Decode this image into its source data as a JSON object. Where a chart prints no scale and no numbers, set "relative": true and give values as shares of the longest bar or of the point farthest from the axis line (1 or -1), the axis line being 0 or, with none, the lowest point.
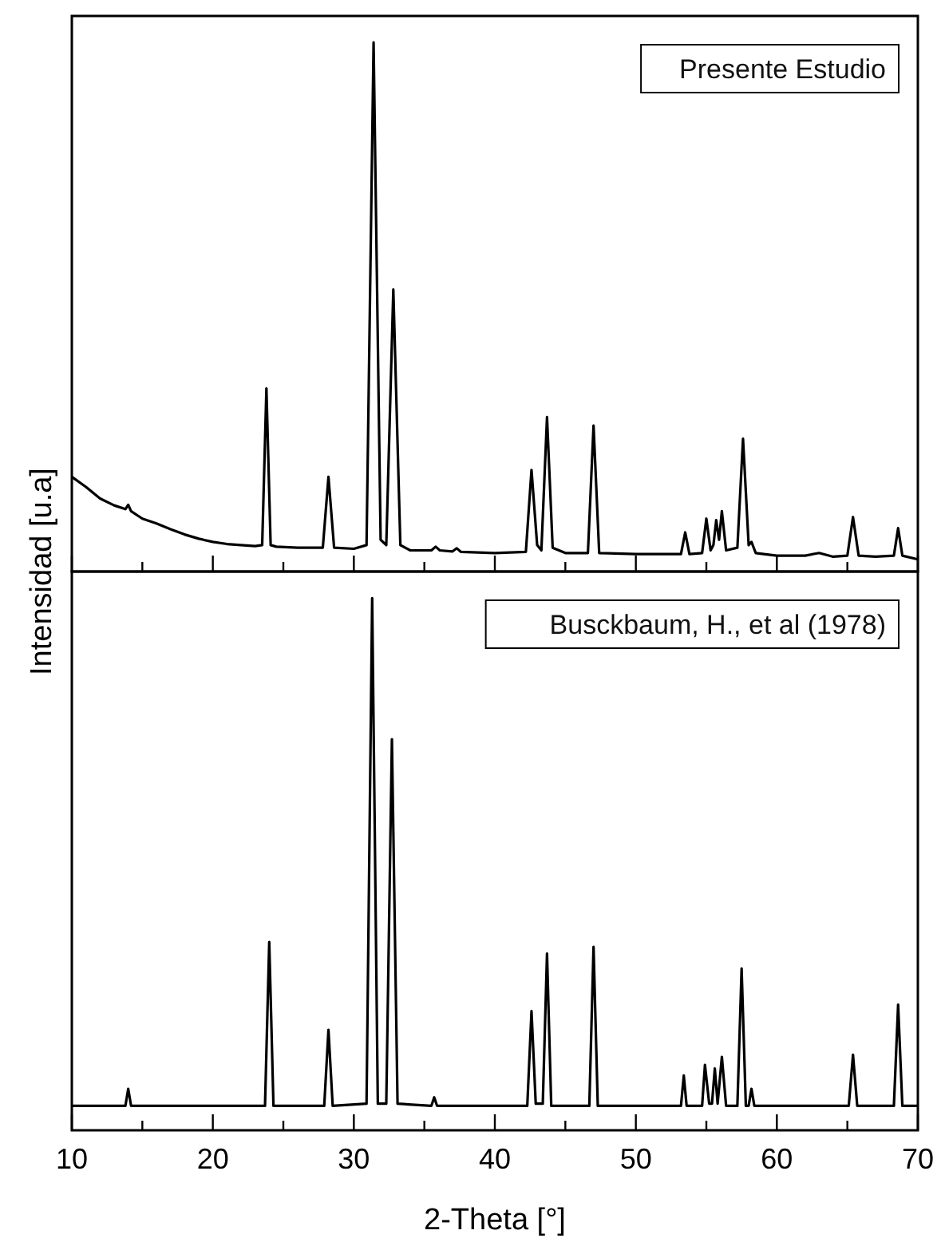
{
  "chart_data": [
    {
      "type": "line",
      "relative": true,
      "ylabel": "Intensidad [u.a]",
      "xlim": [
        10,
        70
      ],
      "xticks": [
        10,
        {
          "value": 15,
          "label": null
        },
        20,
        {
          "value": 25,
          "label": null
        },
        30,
        {
          "value": 35,
          "label": null
        },
        40,
        {
          "value": 45,
          "label": null
        },
        50,
        {
          "value": 55,
          "label": null
        },
        60,
        {
          "value": 65,
          "label": null
        },
        70
      ],
      "tick_labels": false,
      "legend": "top right",
      "series": [
        {
          "name": "Presente Estudio",
          "color": "#000000",
          "x": [
            10,
            11,
            12,
            13,
            13.8,
            14,
            14.2,
            15,
            16,
            17,
            18,
            19,
            20,
            21,
            22,
            23,
            23.5,
            23.8,
            24.1,
            24.5,
            26,
            27.8,
            28.2,
            28.6,
            30,
            30.9,
            31.4,
            31.9,
            32.3,
            32.8,
            33.3,
            34,
            35.5,
            35.8,
            36.1,
            37,
            37.3,
            37.6,
            40,
            42.2,
            42.6,
            43.0,
            43.3,
            43.7,
            44.1,
            45,
            46.6,
            47.0,
            47.4,
            50,
            53.2,
            53.5,
            53.8,
            54.7,
            55.0,
            55.3,
            55.5,
            55.7,
            55.9,
            56.1,
            56.4,
            57.2,
            57.6,
            58.0,
            58.2,
            58.5,
            60,
            62,
            63,
            64,
            65.0,
            65.4,
            65.8,
            67,
            68.3,
            68.6,
            68.9,
            70
          ],
          "values": [
            0.179,
            0.16,
            0.138,
            0.125,
            0.118,
            0.126,
            0.114,
            0.1,
            0.091,
            0.08,
            0.07,
            0.062,
            0.056,
            0.052,
            0.05,
            0.048,
            0.05,
            0.346,
            0.05,
            0.047,
            0.045,
            0.045,
            0.179,
            0.045,
            0.043,
            0.05,
            1.0,
            0.06,
            0.05,
            0.533,
            0.05,
            0.04,
            0.04,
            0.047,
            0.04,
            0.038,
            0.044,
            0.037,
            0.035,
            0.037,
            0.192,
            0.05,
            0.04,
            0.292,
            0.045,
            0.035,
            0.035,
            0.276,
            0.035,
            0.033,
            0.033,
            0.074,
            0.033,
            0.035,
            0.1,
            0.04,
            0.05,
            0.097,
            0.06,
            0.114,
            0.04,
            0.045,
            0.251,
            0.05,
            0.056,
            0.035,
            0.03,
            0.03,
            0.035,
            0.028,
            0.03,
            0.103,
            0.03,
            0.028,
            0.03,
            0.082,
            0.03,
            0.023
          ]
        }
      ]
    },
    {
      "type": "line",
      "relative": true,
      "xlabel": "2-Theta [°]",
      "xlim": [
        10,
        70
      ],
      "xticks": [
        10,
        {
          "value": 15,
          "label": null
        },
        20,
        {
          "value": 25,
          "label": null
        },
        30,
        {
          "value": 35,
          "label": null
        },
        40,
        {
          "value": 45,
          "label": null
        },
        50,
        {
          "value": 55,
          "label": null
        },
        60,
        {
          "value": 65,
          "label": null
        },
        70
      ],
      "tick_labels": "x",
      "legend": "top right",
      "series": [
        {
          "name": "Busckbaum, H., et al (1978)",
          "color": "#000000",
          "x": [
            10,
            13.8,
            14.0,
            14.2,
            23.7,
            24.0,
            24.3,
            27.9,
            28.2,
            28.5,
            30.9,
            31.3,
            31.7,
            32.3,
            32.7,
            33.1,
            35.5,
            35.7,
            35.9,
            42.3,
            42.6,
            42.9,
            43.4,
            43.7,
            44.0,
            46.7,
            47.0,
            47.3,
            53.2,
            53.4,
            53.6,
            54.7,
            54.9,
            55.2,
            55.4,
            55.6,
            55.8,
            56.1,
            56.4,
            57.2,
            57.5,
            57.8,
            58.0,
            58.2,
            58.4,
            65.1,
            65.4,
            65.7,
            68.3,
            68.6,
            68.9,
            70
          ],
          "values": [
            0.046,
            0.046,
            0.078,
            0.046,
            0.046,
            0.354,
            0.046,
            0.046,
            0.189,
            0.046,
            0.05,
            1.0,
            0.05,
            0.05,
            0.735,
            0.05,
            0.046,
            0.062,
            0.046,
            0.046,
            0.224,
            0.05,
            0.05,
            0.332,
            0.046,
            0.046,
            0.345,
            0.046,
            0.046,
            0.103,
            0.046,
            0.046,
            0.123,
            0.05,
            0.05,
            0.116,
            0.05,
            0.138,
            0.046,
            0.046,
            0.304,
            0.046,
            0.046,
            0.078,
            0.046,
            0.046,
            0.142,
            0.046,
            0.046,
            0.236,
            0.046,
            0.046
          ]
        }
      ]
    }
  ]
}
